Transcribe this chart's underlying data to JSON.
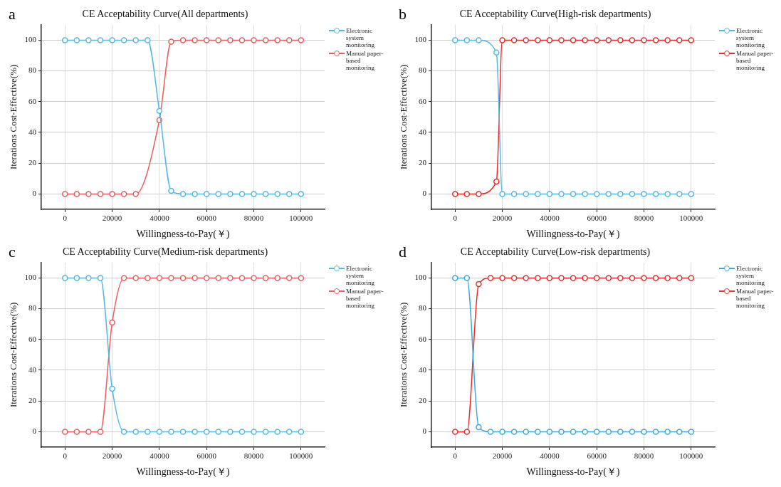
{
  "chart_data": [
    {
      "type": "line",
      "title": "CE Acceptability Curve(All departments)",
      "annotations": [
        "a"
      ],
      "xlabel": "Willingness-to-Pay(￥)",
      "ylabel": "Iterations Cost-Effective(%)",
      "xlim": [
        -10000,
        110000
      ],
      "ylim": [
        -10,
        110
      ],
      "xticks": [
        0,
        20000,
        40000,
        60000,
        80000,
        100000
      ],
      "yticks": [
        0,
        20,
        40,
        60,
        80,
        100
      ],
      "grid": true,
      "legend": "top right",
      "marker": "circle",
      "line_style": "solid",
      "series": [
        {
          "name": "Electronic system monitoring",
          "color": "#4fb8e8",
          "x": [
            0,
            5000,
            10000,
            15000,
            20000,
            25000,
            30000,
            35000,
            40000,
            45000,
            50000,
            55000,
            60000,
            65000,
            70000,
            75000,
            80000,
            85000,
            90000,
            95000,
            100000
          ],
          "values": [
            100,
            100,
            100,
            100,
            100,
            100,
            100,
            100,
            54,
            2,
            0,
            0,
            0,
            0,
            0,
            0,
            0,
            0,
            0,
            0,
            0
          ]
        },
        {
          "name": "Manual paper-based monitoring",
          "color": "#f05a5a",
          "x": [
            0,
            5000,
            10000,
            15000,
            20000,
            25000,
            30000,
            40000,
            45000,
            50000,
            55000,
            60000,
            65000,
            70000,
            75000,
            80000,
            85000,
            90000,
            95000,
            100000
          ],
          "values": [
            0,
            0,
            0,
            0,
            0,
            0,
            0,
            48,
            99,
            100,
            100,
            100,
            100,
            100,
            100,
            100,
            100,
            100,
            100,
            100
          ]
        }
      ]
    },
    {
      "type": "line",
      "title": "CE Acceptability Curve(High-risk departments)",
      "annotations": [
        "b"
      ],
      "xlabel": "Willingness-to-Pay(￥)",
      "ylabel": "Iterations Cost-Effective(%)",
      "xlim": [
        -10000,
        110000
      ],
      "ylim": [
        -10,
        110
      ],
      "xticks": [
        0,
        20000,
        40000,
        60000,
        80000,
        100000
      ],
      "yticks": [
        0,
        20,
        40,
        60,
        80,
        100
      ],
      "grid": true,
      "legend": "top right",
      "marker": "circle",
      "line_style": "solid",
      "series": [
        {
          "name": "Electronic system monitoring",
          "color": "#4fb8e8",
          "x": [
            0,
            5000,
            10000,
            17500,
            20000,
            25000,
            30000,
            35000,
            40000,
            45000,
            50000,
            55000,
            60000,
            65000,
            70000,
            75000,
            80000,
            85000,
            90000,
            95000,
            100000
          ],
          "values": [
            100,
            100,
            100,
            92,
            0,
            0,
            0,
            0,
            0,
            0,
            0,
            0,
            0,
            0,
            0,
            0,
            0,
            0,
            0,
            0,
            0
          ]
        },
        {
          "name": "Manual paper-based monitoring",
          "color": "#f02828",
          "x": [
            0,
            5000,
            10000,
            17500,
            20000,
            25000,
            30000,
            35000,
            40000,
            45000,
            50000,
            55000,
            60000,
            65000,
            70000,
            75000,
            80000,
            85000,
            90000,
            95000,
            100000
          ],
          "values": [
            0,
            0,
            0,
            8,
            100,
            100,
            100,
            100,
            100,
            100,
            100,
            100,
            100,
            100,
            100,
            100,
            100,
            100,
            100,
            100,
            100
          ]
        }
      ]
    },
    {
      "type": "line",
      "title": "CE Acceptability Curve(Medium-risk departments)",
      "annotations": [
        "c"
      ],
      "xlabel": "Willingness-to-Pay(￥)",
      "ylabel": "Iterations Cost-Effective(%)",
      "xlim": [
        -10000,
        110000
      ],
      "ylim": [
        -10,
        110
      ],
      "xticks": [
        0,
        20000,
        40000,
        60000,
        80000,
        100000
      ],
      "yticks": [
        0,
        20,
        40,
        60,
        80,
        100
      ],
      "grid": true,
      "legend": "top right",
      "marker": "circle",
      "line_style": "solid",
      "series": [
        {
          "name": "Electronic system monitoring",
          "color": "#4fb8e8",
          "x": [
            0,
            5000,
            10000,
            15000,
            20000,
            25000,
            30000,
            35000,
            40000,
            45000,
            50000,
            55000,
            60000,
            65000,
            70000,
            75000,
            80000,
            85000,
            90000,
            95000,
            100000
          ],
          "values": [
            100,
            100,
            100,
            100,
            28,
            0,
            0,
            0,
            0,
            0,
            0,
            0,
            0,
            0,
            0,
            0,
            0,
            0,
            0,
            0,
            0
          ]
        },
        {
          "name": "Manual paper-based monitoring",
          "color": "#f05a5a",
          "x": [
            0,
            5000,
            10000,
            15000,
            20000,
            25000,
            30000,
            35000,
            40000,
            45000,
            50000,
            55000,
            60000,
            65000,
            70000,
            75000,
            80000,
            85000,
            90000,
            95000,
            100000
          ],
          "values": [
            0,
            0,
            0,
            0,
            71,
            100,
            100,
            100,
            100,
            100,
            100,
            100,
            100,
            100,
            100,
            100,
            100,
            100,
            100,
            100,
            100
          ]
        }
      ]
    },
    {
      "type": "line",
      "title": "CE Acceptability Curve(Low-risk departments)",
      "annotations": [
        "d"
      ],
      "xlabel": "Willingness-to-Pay(￥)",
      "ylabel": "Iterations Cost-Effective(%)",
      "xlim": [
        -10000,
        110000
      ],
      "ylim": [
        -10,
        110
      ],
      "xticks": [
        0,
        20000,
        40000,
        60000,
        80000,
        100000
      ],
      "yticks": [
        0,
        20,
        40,
        60,
        80,
        100
      ],
      "grid": true,
      "legend": "top right",
      "marker": "circle",
      "line_style": "solid",
      "series": [
        {
          "name": "Electronic system monitoring",
          "color": "#3aa8e0",
          "x": [
            0,
            5000,
            10000,
            15000,
            20000,
            25000,
            30000,
            35000,
            40000,
            45000,
            50000,
            55000,
            60000,
            65000,
            70000,
            75000,
            80000,
            85000,
            90000,
            95000,
            100000
          ],
          "values": [
            100,
            100,
            3,
            0,
            0,
            0,
            0,
            0,
            0,
            0,
            0,
            0,
            0,
            0,
            0,
            0,
            0,
            0,
            0,
            0,
            0
          ]
        },
        {
          "name": "Manual paper-based monitoring",
          "color": "#f02828",
          "x": [
            0,
            5000,
            10000,
            15000,
            20000,
            25000,
            30000,
            35000,
            40000,
            45000,
            50000,
            55000,
            60000,
            65000,
            70000,
            75000,
            80000,
            85000,
            90000,
            95000,
            100000
          ],
          "values": [
            0,
            0,
            96,
            100,
            100,
            100,
            100,
            100,
            100,
            100,
            100,
            100,
            100,
            100,
            100,
            100,
            100,
            100,
            100,
            100,
            100
          ]
        }
      ]
    }
  ]
}
